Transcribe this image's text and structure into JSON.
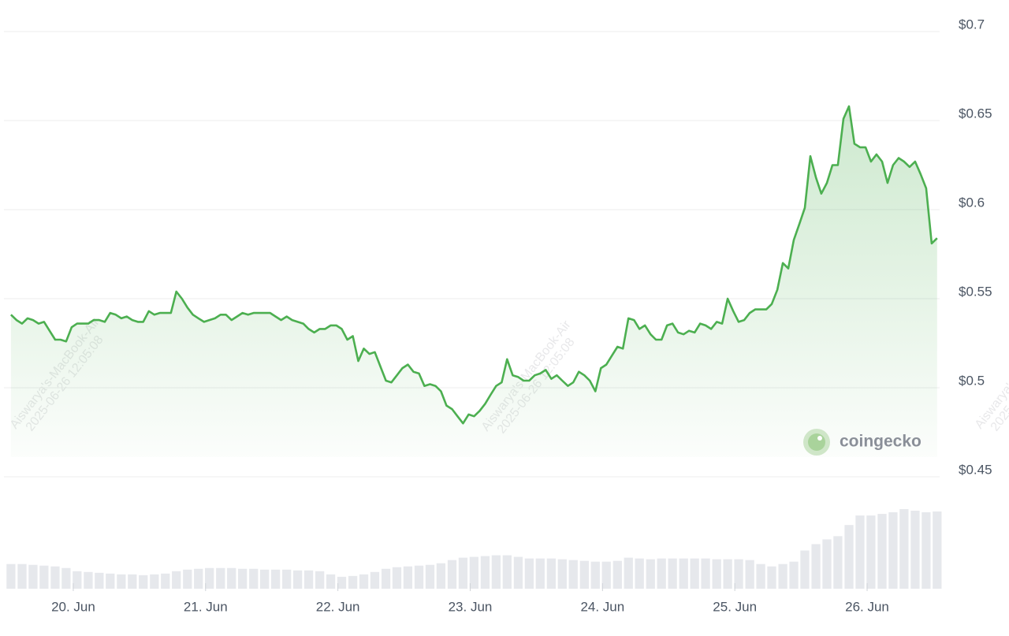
{
  "chart_data": [
    {
      "type": "line",
      "color": "#4caf50",
      "grid": true,
      "x": [
        19.529,
        19.571,
        19.613,
        19.654,
        19.696,
        19.738,
        19.779,
        19.821,
        19.863,
        19.904,
        19.946,
        19.988,
        20.029,
        20.071,
        20.113,
        20.154,
        20.196,
        20.238,
        20.279,
        20.321,
        20.363,
        20.404,
        20.446,
        20.488,
        20.529,
        20.571,
        20.613,
        20.654,
        20.696,
        20.738,
        20.779,
        20.821,
        20.863,
        20.904,
        20.946,
        20.988,
        21.029,
        21.071,
        21.113,
        21.154,
        21.196,
        21.238,
        21.279,
        21.321,
        21.363,
        21.404,
        21.446,
        21.488,
        21.529,
        21.571,
        21.613,
        21.654,
        21.696,
        21.738,
        21.779,
        21.821,
        21.863,
        21.904,
        21.946,
        21.988,
        22.029,
        22.071,
        22.113,
        22.154,
        22.196,
        22.238,
        22.279,
        22.321,
        22.363,
        22.404,
        22.446,
        22.488,
        22.529,
        22.571,
        22.613,
        22.654,
        22.696,
        22.738,
        22.779,
        22.821,
        22.863,
        22.904,
        22.946,
        22.988,
        23.029,
        23.071,
        23.113,
        23.154,
        23.196,
        23.238,
        23.279,
        23.321,
        23.363,
        23.404,
        23.446,
        23.488,
        23.529,
        23.571,
        23.613,
        23.654,
        23.696,
        23.738,
        23.779,
        23.821,
        23.863,
        23.904,
        23.946,
        23.988,
        24.029,
        24.071,
        24.113,
        24.154,
        24.196,
        24.238,
        24.279,
        24.321,
        24.363,
        24.404,
        24.446,
        24.488,
        24.529,
        24.571,
        24.613,
        24.654,
        24.696,
        24.738,
        24.779,
        24.821,
        24.863,
        24.904,
        24.946,
        24.988,
        25.029,
        25.071,
        25.113,
        25.154,
        25.196,
        25.238,
        25.279,
        25.321,
        25.363,
        25.404,
        25.446,
        25.488,
        25.529,
        25.571,
        25.613,
        25.654,
        25.696,
        25.738,
        25.779,
        25.821,
        25.863,
        25.904,
        25.946,
        25.988,
        26.029,
        26.071,
        26.113,
        26.154,
        26.196,
        26.238,
        26.279,
        26.321,
        26.363,
        26.404,
        26.446,
        26.488,
        26.529
      ],
      "values": [
        0.541,
        0.538,
        0.536,
        0.539,
        0.538,
        0.536,
        0.537,
        0.532,
        0.527,
        0.527,
        0.526,
        0.534,
        0.536,
        0.536,
        0.536,
        0.538,
        0.538,
        0.537,
        0.542,
        0.541,
        0.539,
        0.54,
        0.538,
        0.537,
        0.537,
        0.543,
        0.541,
        0.542,
        0.542,
        0.542,
        0.554,
        0.55,
        0.545,
        0.541,
        0.539,
        0.537,
        0.538,
        0.539,
        0.541,
        0.541,
        0.538,
        0.54,
        0.542,
        0.541,
        0.542,
        0.542,
        0.542,
        0.542,
        0.54,
        0.538,
        0.54,
        0.538,
        0.537,
        0.536,
        0.533,
        0.531,
        0.533,
        0.533,
        0.535,
        0.535,
        0.533,
        0.527,
        0.529,
        0.515,
        0.522,
        0.519,
        0.52,
        0.512,
        0.504,
        0.503,
        0.507,
        0.511,
        0.513,
        0.509,
        0.508,
        0.501,
        0.502,
        0.501,
        0.498,
        0.49,
        0.488,
        0.484,
        0.48,
        0.485,
        0.484,
        0.487,
        0.491,
        0.496,
        0.501,
        0.503,
        0.516,
        0.507,
        0.506,
        0.504,
        0.504,
        0.507,
        0.508,
        0.51,
        0.505,
        0.507,
        0.504,
        0.501,
        0.503,
        0.509,
        0.507,
        0.504,
        0.498,
        0.511,
        0.513,
        0.518,
        0.523,
        0.522,
        0.539,
        0.538,
        0.533,
        0.535,
        0.53,
        0.527,
        0.527,
        0.535,
        0.536,
        0.531,
        0.53,
        0.532,
        0.531,
        0.536,
        0.535,
        0.533,
        0.537,
        0.536,
        0.55,
        0.543,
        0.537,
        0.538,
        0.542,
        0.544,
        0.544,
        0.544,
        0.547,
        0.555,
        0.57,
        0.567,
        0.583,
        0.592,
        0.601,
        0.63,
        0.618,
        0.609,
        0.615,
        0.625,
        0.625,
        0.651,
        0.658,
        0.637,
        0.635,
        0.635,
        0.627,
        0.631,
        0.627,
        0.615,
        0.625,
        0.629,
        0.627,
        0.624,
        0.627,
        0.62,
        0.612,
        0.581,
        0.584
      ],
      "xlim": [
        19.476,
        26.548
      ],
      "xticks": [
        {
          "value": 20,
          "label": "20. Jun"
        },
        {
          "value": 21,
          "label": "21. Jun"
        },
        {
          "value": 22,
          "label": "22. Jun"
        },
        {
          "value": 23,
          "label": "23. Jun"
        },
        {
          "value": 24,
          "label": "24. Jun"
        },
        {
          "value": 25,
          "label": "25. Jun"
        },
        {
          "value": 26,
          "label": "26. Jun"
        }
      ],
      "ylim": [
        0.45,
        0.7
      ],
      "yticks": [
        {
          "value": 0.45,
          "label": "$0.45"
        },
        {
          "value": 0.5,
          "label": "$0.5"
        },
        {
          "value": 0.55,
          "label": "$0.55"
        },
        {
          "value": 0.6,
          "label": "$0.6"
        },
        {
          "value": 0.65,
          "label": "$0.65"
        },
        {
          "value": 0.7,
          "label": "$0.7"
        }
      ]
    },
    {
      "type": "bar",
      "color": "#e6e8ec",
      "x": [
        19.529,
        19.613,
        19.696,
        19.779,
        19.863,
        19.946,
        20.029,
        20.113,
        20.196,
        20.279,
        20.363,
        20.446,
        20.529,
        20.613,
        20.696,
        20.779,
        20.863,
        20.946,
        21.029,
        21.113,
        21.196,
        21.279,
        21.363,
        21.446,
        21.529,
        21.613,
        21.696,
        21.779,
        21.863,
        21.946,
        22.029,
        22.113,
        22.196,
        22.279,
        22.363,
        22.446,
        22.529,
        22.613,
        22.696,
        22.779,
        22.863,
        22.946,
        23.029,
        23.113,
        23.196,
        23.279,
        23.363,
        23.446,
        23.529,
        23.613,
        23.696,
        23.779,
        23.863,
        23.946,
        24.029,
        24.113,
        24.196,
        24.279,
        24.363,
        24.446,
        24.529,
        24.613,
        24.696,
        24.779,
        24.863,
        24.946,
        25.029,
        25.113,
        25.196,
        25.279,
        25.363,
        25.446,
        25.529,
        25.613,
        25.696,
        25.779,
        25.863,
        25.946,
        26.029,
        26.113,
        26.196,
        26.279,
        26.363,
        26.446,
        26.529
      ],
      "values": [
        31,
        31,
        30,
        29,
        28,
        26,
        22,
        21,
        20,
        19,
        18,
        18,
        17,
        18,
        19,
        22,
        24,
        25,
        26,
        26,
        26,
        25,
        25,
        24,
        24,
        24,
        23,
        23,
        22,
        18,
        15,
        16,
        18,
        21,
        25,
        27,
        28,
        29,
        30,
        32,
        36,
        39,
        40,
        41,
        42,
        42,
        40,
        38,
        38,
        38,
        37,
        36,
        35,
        34,
        34,
        35,
        39,
        38,
        37,
        38,
        38,
        38,
        38,
        38,
        37,
        37,
        37,
        36,
        31,
        28,
        31,
        34,
        48,
        56,
        62,
        66,
        80,
        92,
        92,
        94,
        96,
        100,
        98,
        96,
        97
      ],
      "xlim": [
        19.476,
        26.548
      ],
      "ylim": [
        0,
        100
      ]
    }
  ],
  "brand": "coingecko",
  "watermark": [
    "Aiswarya's-MacBook-Air",
    "2025-06-26 12:05:08"
  ]
}
